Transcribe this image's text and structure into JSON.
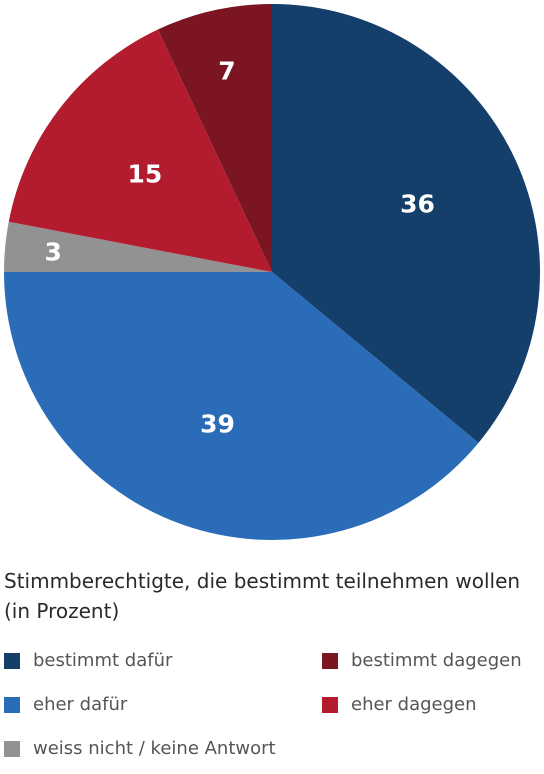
{
  "chart_data": {
    "type": "pie",
    "title": "Stimmberechtigte, die bestimmt teilnehmen wollen (in Prozent)",
    "slices": [
      {
        "label": "bestimmt dafür",
        "value": 36,
        "color": "#133f6a"
      },
      {
        "label": "eher dafür",
        "value": 39,
        "color": "#2a6cb8"
      },
      {
        "label": "weiss nicht / keine Antwort",
        "value": 3,
        "color": "#929292"
      },
      {
        "label": "eher dagegen",
        "value": 15,
        "color": "#b31b2f"
      },
      {
        "label": "bestimmt dagegen",
        "value": 7,
        "color": "#7b1522"
      }
    ],
    "value_labels": [
      "36",
      "39",
      "3",
      "15",
      "7"
    ],
    "legend": [
      {
        "label": "bestimmt dafür",
        "color": "#133f6a"
      },
      {
        "label": "bestimmt dagegen",
        "color": "#7b1522"
      },
      {
        "label": "eher dafür",
        "color": "#2a6cb8"
      },
      {
        "label": "eher dagegen",
        "color": "#b31b2f"
      },
      {
        "label": "weiss nicht / keine Antwort",
        "color": "#929292"
      }
    ],
    "legend_placement": "bottom",
    "start_angle": "12 o'clock",
    "direction": "clockwise"
  }
}
